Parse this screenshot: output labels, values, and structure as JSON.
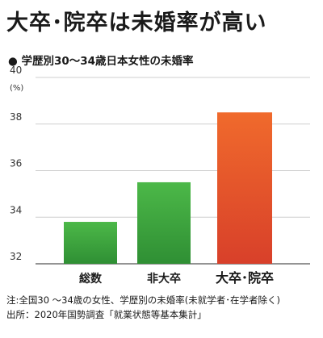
{
  "title": "大卒･院卒は未婚率が高い",
  "subtitle_bullet": "●",
  "subtitle": "学歴別30〜34歳日本女性の未婚率",
  "notes": [
    "注:全国30 〜34歳の女性、学歴別の未婚率(未就学者･在学者除く)",
    "出所：2020年国勢調査「就業状態等基本集計」"
  ],
  "chart_data": {
    "type": "bar",
    "title": "学歴別30〜34歳日本女性の未婚率",
    "xlabel": "",
    "ylabel": "(%)",
    "ylim": [
      32,
      40
    ],
    "yticks": [
      32,
      34,
      36,
      38,
      40
    ],
    "grid": true,
    "categories": [
      "総数",
      "非大卒",
      "大卒･院卒"
    ],
    "values": [
      33.8,
      35.5,
      38.5
    ],
    "colors": [
      "#3a9e3a",
      "#3a9e3a",
      "#e5542a"
    ],
    "highlight_category": "大卒･院卒"
  }
}
